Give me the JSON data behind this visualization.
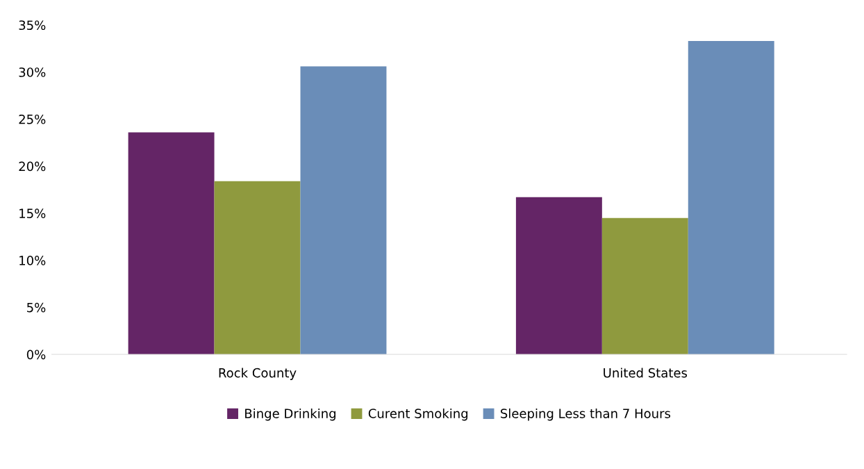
{
  "chart_data": {
    "type": "bar",
    "categories": [
      "Rock County",
      "United States"
    ],
    "series": [
      {
        "name": "Binge Drinking",
        "color": "#642566",
        "values": [
          23.6,
          16.7
        ]
      },
      {
        "name": "Curent Smoking",
        "color": "#8f9a3e",
        "values": [
          18.4,
          14.5
        ]
      },
      {
        "name": "Sleeping Less than 7 Hours",
        "color": "#6a8db8",
        "values": [
          30.6,
          33.3
        ]
      }
    ],
    "ylim": [
      0,
      35
    ],
    "yticks": [
      {
        "value": 0,
        "label": "0%"
      },
      {
        "value": 5,
        "label": "5%"
      },
      {
        "value": 10,
        "label": "10%"
      },
      {
        "value": 15,
        "label": "15%"
      },
      {
        "value": 20,
        "label": "20%"
      },
      {
        "value": 25,
        "label": "25%"
      },
      {
        "value": 30,
        "label": "30%"
      },
      {
        "value": 35,
        "label": "35%"
      }
    ],
    "grid": false,
    "legend": "bottom"
  }
}
